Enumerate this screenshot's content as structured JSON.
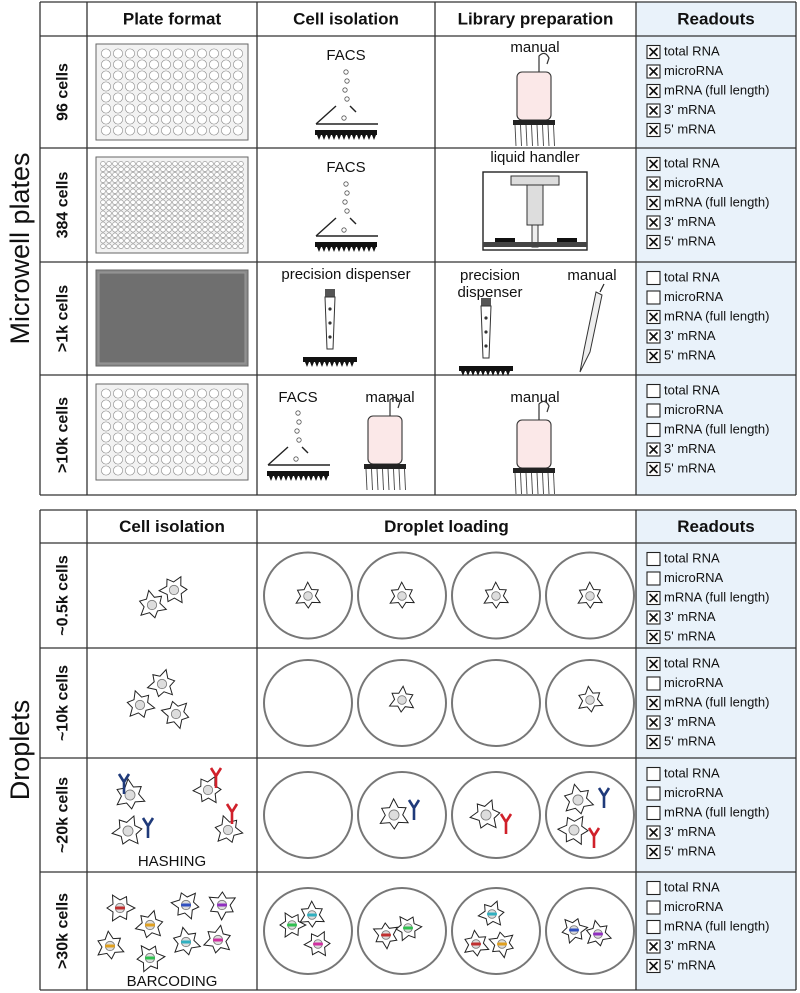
{
  "microwell": {
    "label": "Microwell plates",
    "headers": [
      "Plate format",
      "Cell isolation",
      "Library preparation",
      "Readouts"
    ],
    "rows": [
      {
        "label": "96 cells",
        "isolation": [
          "FACS"
        ],
        "library": [
          "manual"
        ],
        "readouts": [
          true,
          true,
          true,
          true,
          true
        ]
      },
      {
        "label": "384 cells",
        "isolation": [
          "FACS"
        ],
        "library": [
          "liquid handler"
        ],
        "readouts": [
          true,
          true,
          true,
          true,
          true
        ]
      },
      {
        "label": ">1k cells",
        "isolation": [
          "precision dispenser"
        ],
        "library": [
          "precision dispenser",
          "manual"
        ],
        "readouts": [
          false,
          false,
          true,
          true,
          true
        ]
      },
      {
        "label": ">10k cells",
        "isolation": [
          "FACS",
          "manual"
        ],
        "library": [
          "manual"
        ],
        "readouts": [
          false,
          false,
          false,
          true,
          true
        ]
      }
    ]
  },
  "droplets": {
    "label": "Droplets",
    "headers": [
      "Cell isolation",
      "Droplet loading",
      "Readouts"
    ],
    "rows": [
      {
        "label": "~0.5k cells",
        "readouts": [
          false,
          false,
          true,
          true,
          true
        ]
      },
      {
        "label": "~10k cells",
        "readouts": [
          true,
          false,
          true,
          true,
          true
        ]
      },
      {
        "label": "~20k cells",
        "caption": "HASHING",
        "readouts": [
          false,
          false,
          false,
          true,
          true
        ]
      },
      {
        "label": ">30k cells",
        "caption": "BARCODING",
        "readouts": [
          false,
          false,
          false,
          true,
          true
        ]
      }
    ]
  },
  "readout_items": [
    "total RNA",
    "microRNA",
    "mRNA (full length)",
    "3' mRNA",
    "5' mRNA"
  ]
}
